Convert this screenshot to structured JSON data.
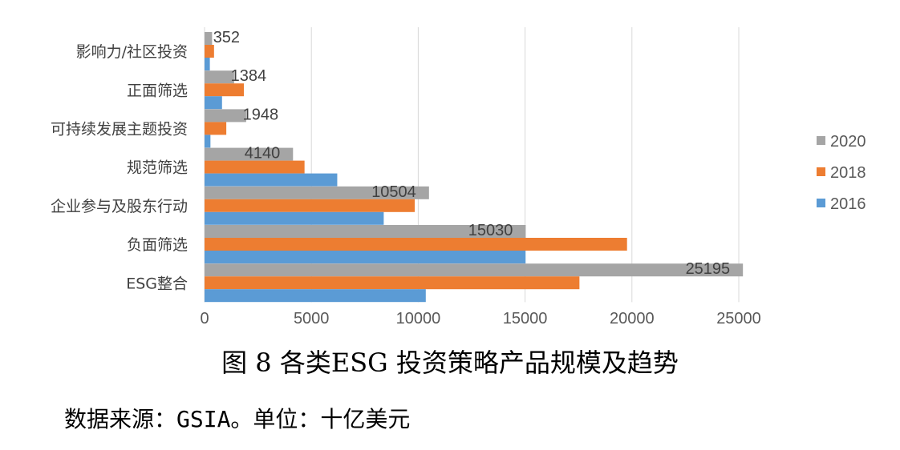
{
  "chart_data": {
    "type": "bar",
    "orientation": "horizontal",
    "categories": [
      "ESG整合",
      "负面筛选",
      "企业参与及股东行动",
      "规范筛选",
      "可持续发展主题投资",
      "正面筛选",
      "影响力/社区投资"
    ],
    "series": [
      {
        "name": "2020",
        "color": "#A5A5A5",
        "values": [
          25195,
          15030,
          10504,
          4140,
          1948,
          1384,
          352
        ],
        "labels_shown": true
      },
      {
        "name": "2018",
        "color": "#ED7D31",
        "values": [
          17544,
          19771,
          9835,
          4679,
          1018,
          1842,
          444
        ],
        "labels_shown": false
      },
      {
        "name": "2016",
        "color": "#5B9BD5",
        "values": [
          10353,
          15023,
          8385,
          6210,
          276,
          818,
          248
        ],
        "labels_shown": false
      }
    ],
    "xlim": [
      0,
      25000
    ],
    "xticks": [
      0,
      5000,
      10000,
      15000,
      20000,
      25000
    ],
    "grid": true,
    "legend_position": "right",
    "legend_order": [
      "2020",
      "2018",
      "2016"
    ]
  },
  "caption": "图 8 各类ESG 投资策略产品规模及趋势",
  "source": "数据来源：GSIA。单位：十亿美元"
}
